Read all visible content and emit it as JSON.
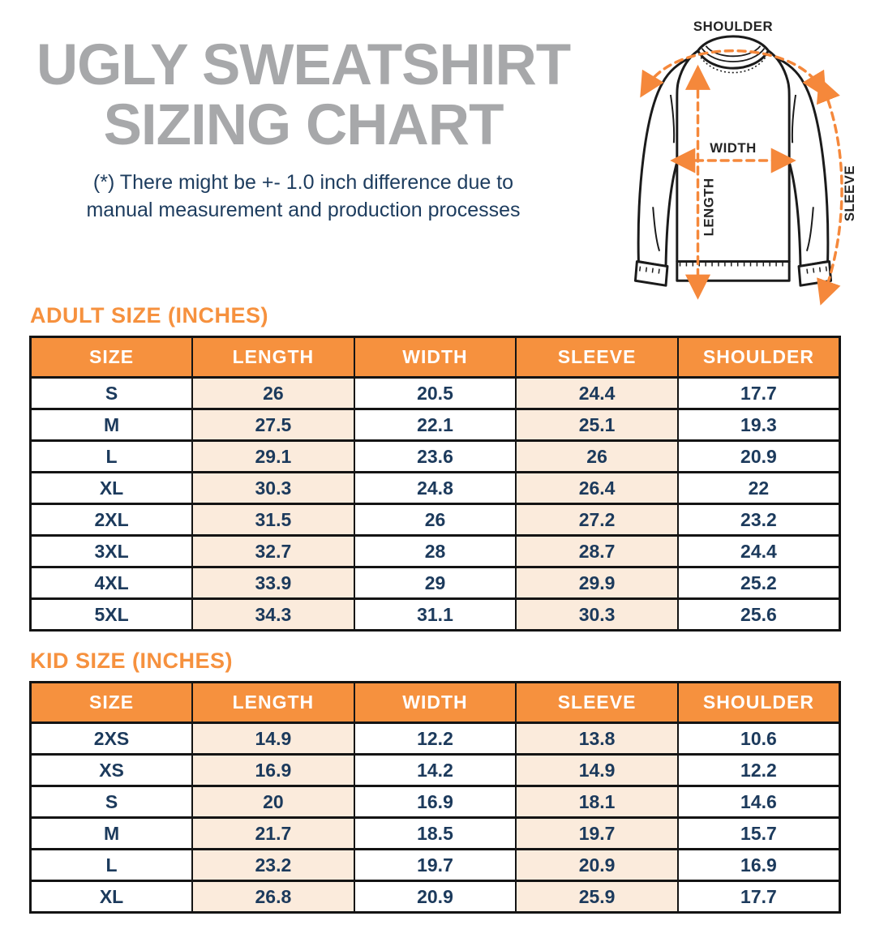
{
  "title": {
    "line1": "UGLY SWEATSHIRT",
    "line2": "SIZING CHART"
  },
  "disclaimer": {
    "line1": "(*) There might be +- 1.0 inch difference due to",
    "line2": "manual measurement and production processes"
  },
  "diagram": {
    "shoulder_label": "SHOULDER",
    "width_label": "WIDTH",
    "length_label": "LENGTH",
    "sleeve_label": "SLEEVE"
  },
  "sections": {
    "adult": {
      "heading": "ADULT SIZE (INCHES)",
      "columns": [
        "SIZE",
        "LENGTH",
        "WIDTH",
        "SLEEVE",
        "SHOULDER"
      ],
      "rows": [
        [
          "S",
          "26",
          "20.5",
          "24.4",
          "17.7"
        ],
        [
          "M",
          "27.5",
          "22.1",
          "25.1",
          "19.3"
        ],
        [
          "L",
          "29.1",
          "23.6",
          "26",
          "20.9"
        ],
        [
          "XL",
          "30.3",
          "24.8",
          "26.4",
          "22"
        ],
        [
          "2XL",
          "31.5",
          "26",
          "27.2",
          "23.2"
        ],
        [
          "3XL",
          "32.7",
          "28",
          "28.7",
          "24.4"
        ],
        [
          "4XL",
          "33.9",
          "29",
          "29.9",
          "25.2"
        ],
        [
          "5XL",
          "34.3",
          "31.1",
          "30.3",
          "25.6"
        ]
      ]
    },
    "kid": {
      "heading": "KID SIZE (INCHES)",
      "columns": [
        "SIZE",
        "LENGTH",
        "WIDTH",
        "SLEEVE",
        "SHOULDER"
      ],
      "rows": [
        [
          "2XS",
          "14.9",
          "12.2",
          "13.8",
          "10.6"
        ],
        [
          "XS",
          "16.9",
          "14.2",
          "14.9",
          "12.2"
        ],
        [
          "S",
          "20",
          "16.9",
          "18.1",
          "14.6"
        ],
        [
          "M",
          "21.7",
          "18.5",
          "19.7",
          "15.7"
        ],
        [
          "L",
          "23.2",
          "19.7",
          "20.9",
          "16.9"
        ],
        [
          "XL",
          "26.8",
          "20.9",
          "25.9",
          "17.7"
        ]
      ]
    }
  },
  "colors": {
    "accent_orange": "#F6913E",
    "row_peach": "#FBEBDC",
    "text_navy": "#1C3A5C",
    "title_gray": "#A7A8AA",
    "line_black": "#141414"
  }
}
